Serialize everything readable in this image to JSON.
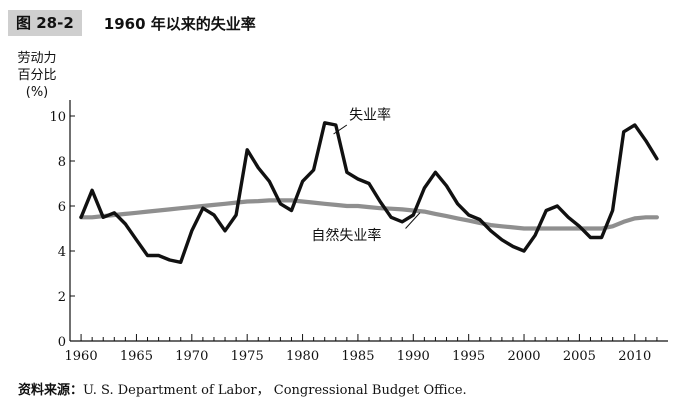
{
  "figure": {
    "number": "图 28-2",
    "title": "1960 年以来的失业率",
    "source_label": "资料来源：",
    "source_text": "U. S.  Department of Labor， Congressional Budget Office."
  },
  "chart_data": {
    "type": "line",
    "title": "1960 年以来的失业率",
    "ylabel_lines": [
      "劳动力",
      "百分比",
      "(%)"
    ],
    "xlabel": "",
    "xlim": [
      1959,
      2013
    ],
    "ylim": [
      0,
      10
    ],
    "x_ticks": [
      1960,
      1965,
      1970,
      1975,
      1980,
      1985,
      1990,
      1995,
      2000,
      2005,
      2010
    ],
    "y_ticks": [
      0,
      2,
      4,
      6,
      8,
      10
    ],
    "grid": false,
    "legend": "inline labels",
    "x": [
      1960,
      1961,
      1962,
      1963,
      1964,
      1965,
      1966,
      1967,
      1968,
      1969,
      1970,
      1971,
      1972,
      1973,
      1974,
      1975,
      1976,
      1977,
      1978,
      1979,
      1980,
      1981,
      1982,
      1983,
      1984,
      1985,
      1986,
      1987,
      1988,
      1989,
      1990,
      1991,
      1992,
      1993,
      1994,
      1995,
      1996,
      1997,
      1998,
      1999,
      2000,
      2001,
      2002,
      2003,
      2004,
      2005,
      2006,
      2007,
      2008,
      2009,
      2010,
      2011,
      2012
    ],
    "series": [
      {
        "name": "失业率",
        "color": "#111111",
        "values": [
          5.5,
          6.7,
          5.5,
          5.7,
          5.2,
          4.5,
          3.8,
          3.8,
          3.6,
          3.5,
          4.9,
          5.9,
          5.6,
          4.9,
          5.6,
          8.5,
          7.7,
          7.1,
          6.1,
          5.8,
          7.1,
          7.6,
          9.7,
          9.6,
          7.5,
          7.2,
          7.0,
          6.2,
          5.5,
          5.3,
          5.6,
          6.8,
          7.5,
          6.9,
          6.1,
          5.6,
          5.4,
          4.9,
          4.5,
          4.2,
          4.0,
          4.7,
          5.8,
          6.0,
          5.5,
          5.1,
          4.6,
          4.6,
          5.8,
          9.3,
          9.6,
          8.9,
          8.1
        ]
      },
      {
        "name": "自然失业率",
        "color": "#8f8f8f",
        "values": [
          5.5,
          5.5,
          5.55,
          5.6,
          5.65,
          5.7,
          5.75,
          5.8,
          5.85,
          5.9,
          5.95,
          6.0,
          6.05,
          6.1,
          6.15,
          6.2,
          6.22,
          6.25,
          6.25,
          6.25,
          6.2,
          6.15,
          6.1,
          6.05,
          6.0,
          6.0,
          5.95,
          5.9,
          5.88,
          5.85,
          5.8,
          5.75,
          5.65,
          5.55,
          5.45,
          5.35,
          5.25,
          5.15,
          5.1,
          5.05,
          5.0,
          5.0,
          5.0,
          5.0,
          5.0,
          5.0,
          5.0,
          5.0,
          5.1,
          5.3,
          5.45,
          5.5,
          5.5
        ]
      }
    ]
  }
}
